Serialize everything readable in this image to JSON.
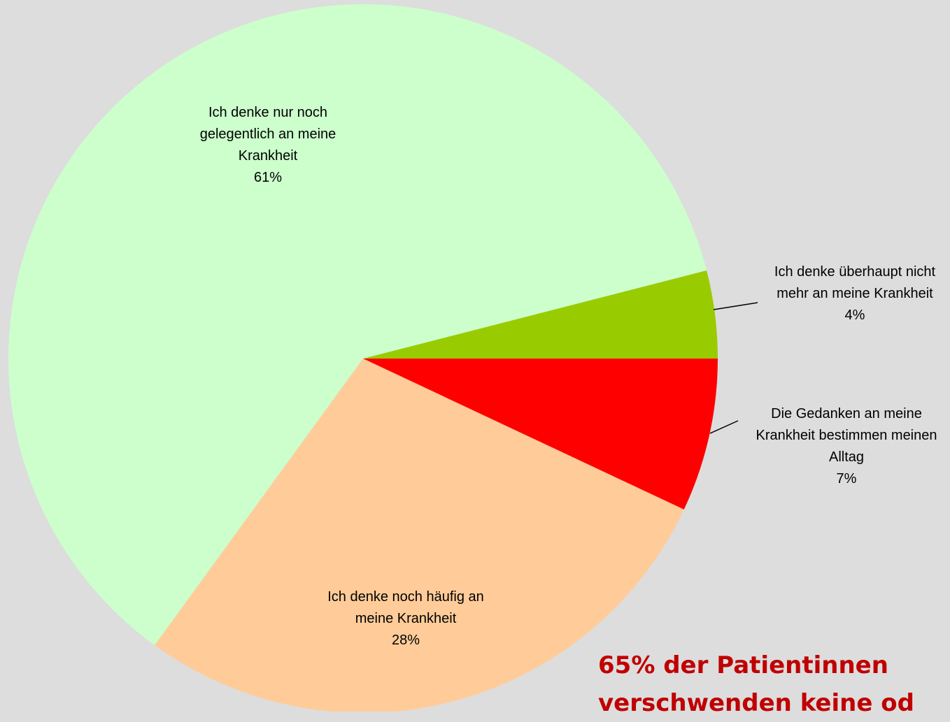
{
  "chart_data": {
    "type": "pie",
    "categories": [
      "Die Gedanken an meine Krankheit bestimmen meinen Alltag",
      "Ich denke noch häufig an meine Krankheit",
      "Ich denke nur noch gelegentlich an meine Krankheit",
      "Ich denke überhaupt nicht mehr an meine Krankheit"
    ],
    "values": [
      7,
      28,
      61,
      4
    ],
    "value_labels": [
      "7%",
      "28%",
      "61%",
      "4%"
    ],
    "colors": [
      "#ff0000",
      "#ffcc99",
      "#ccffcc",
      "#99cc00"
    ],
    "annotation": [
      "65% der Patientinnen",
      "verschwenden keine od"
    ]
  }
}
